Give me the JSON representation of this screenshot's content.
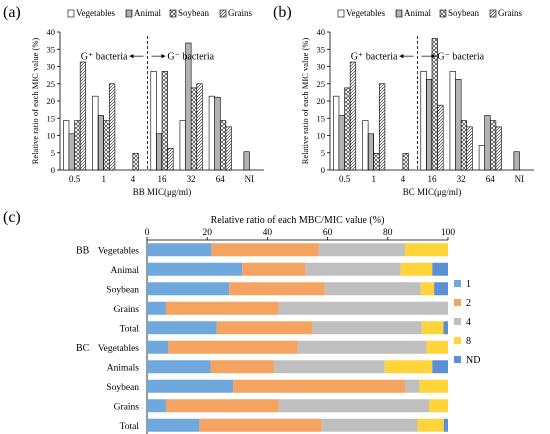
{
  "figure": {
    "panel_labels": [
      "(a)",
      "(b)",
      "(c)"
    ]
  },
  "colors": {
    "mic_series_fill": [
      "#ffffff",
      "#ffffff",
      "#ffffff",
      "#ffffff"
    ],
    "mic_series_pattern": [
      "plain",
      "vertical-lines",
      "crosshatch",
      "diagonal-lines"
    ],
    "stack": [
      "#6fa8dc",
      "#f4a460",
      "#bfbfbf",
      "#ffd43b",
      "#5b8fd6"
    ]
  },
  "chart_data": [
    {
      "id": "a",
      "type": "bar",
      "categories": [
        "0.5",
        "1",
        "4",
        "16",
        "32",
        "64",
        "NI"
      ],
      "series": [
        {
          "name": "Vegetables",
          "values": [
            14.3,
            21.4,
            0,
            28.6,
            14.3,
            21.4,
            0
          ]
        },
        {
          "name": "Animal",
          "values": [
            10.5,
            15.8,
            0,
            10.5,
            36.8,
            21.1,
            5.3
          ]
        },
        {
          "name": "Soybean",
          "values": [
            14.3,
            14.3,
            4.8,
            28.6,
            23.8,
            14.3,
            0
          ]
        },
        {
          "name": "Grains",
          "values": [
            31.3,
            25.0,
            0,
            6.3,
            25.0,
            12.5,
            0
          ]
        }
      ],
      "xlabel": "BB MIC(μg/ml)",
      "ylabel": "Relative ratio of  each MIC value (%)",
      "ylim": [
        0,
        40
      ],
      "yticks": [
        0,
        5,
        10,
        15,
        20,
        25,
        30,
        35,
        40
      ],
      "legend": "top",
      "annotations": [
        "G⁺ bacteria",
        "G⁻ bacteria"
      ]
    },
    {
      "id": "b",
      "type": "bar",
      "categories": [
        "0.5",
        "1",
        "4",
        "16",
        "32",
        "64",
        "NI"
      ],
      "series": [
        {
          "name": "Vegetables",
          "values": [
            21.4,
            14.3,
            0,
            28.6,
            28.6,
            7.1,
            0
          ]
        },
        {
          "name": "Animal",
          "values": [
            15.8,
            10.5,
            0,
            26.3,
            26.3,
            15.8,
            5.3
          ]
        },
        {
          "name": "Soybean",
          "values": [
            23.8,
            4.8,
            4.8,
            38.1,
            14.3,
            14.3,
            0
          ]
        },
        {
          "name": "Grains",
          "values": [
            31.3,
            25.0,
            0,
            18.8,
            12.5,
            12.5,
            0
          ]
        }
      ],
      "xlabel": "BC MIC(μg/ml)",
      "ylabel": "Relative ratio of  each MIC value (%)",
      "ylim": [
        0,
        40
      ],
      "yticks": [
        0,
        5,
        10,
        15,
        20,
        25,
        30,
        35,
        40
      ],
      "legend": "top",
      "annotations": [
        "G⁺ bacteria",
        "G⁻ bacteria"
      ]
    },
    {
      "id": "c",
      "type": "bar",
      "orientation": "horizontal-stacked",
      "title": "Relative ratio of each MBC/MIC value (%)",
      "xlim": [
        0,
        100
      ],
      "xticks": [
        0,
        20,
        40,
        60,
        80,
        100
      ],
      "group_labels": [
        "BB",
        "BC"
      ],
      "categories": [
        "Vegetables",
        "Animal",
        "Soybean",
        "Grains",
        "Total",
        "Vegetables",
        "Animals",
        "Soybean",
        "Grains",
        "Total"
      ],
      "series": [
        {
          "name": "1",
          "values": [
            21.4,
            31.6,
            27.3,
            6.3,
            23.2,
            7.1,
            21.1,
            28.6,
            6.3,
            17.4
          ]
        },
        {
          "name": "2",
          "values": [
            35.7,
            21.1,
            31.8,
            37.5,
            31.9,
            42.9,
            21.1,
            57.1,
            37.5,
            40.6
          ]
        },
        {
          "name": "4",
          "values": [
            28.6,
            31.6,
            31.8,
            56.2,
            36.2,
            42.9,
            36.8,
            4.8,
            50.0,
            31.9
          ]
        },
        {
          "name": "8",
          "values": [
            14.3,
            10.5,
            4.5,
            0,
            7.2,
            7.1,
            15.8,
            9.5,
            6.2,
            8.7
          ]
        },
        {
          "name": "ND",
          "values": [
            0,
            5.2,
            4.6,
            0,
            1.5,
            0,
            5.2,
            0,
            0,
            1.4
          ]
        }
      ],
      "legend": "right"
    }
  ]
}
